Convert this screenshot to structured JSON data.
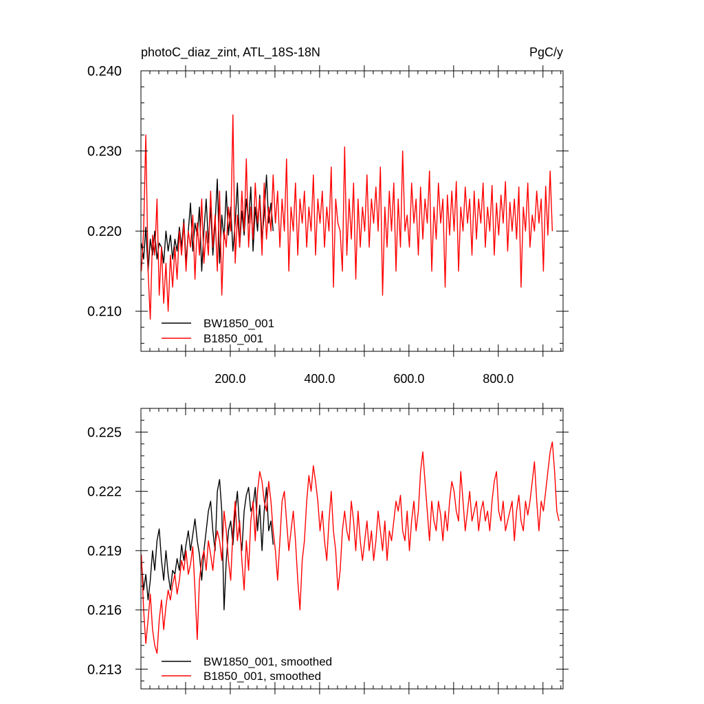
{
  "chart_data": [
    {
      "type": "line",
      "title_left": "photoC_diaz_zint, ATL_18S-18N",
      "title_right": "PgC/y",
      "xlim": [
        0,
        945
      ],
      "ylim": [
        0.205,
        0.24
      ],
      "xticks": [
        200,
        400,
        600,
        800
      ],
      "xtick_labels": [
        "200.0",
        "400.0",
        "600.0",
        "800.0"
      ],
      "yticks": [
        0.21,
        0.22,
        0.23,
        0.24
      ],
      "ytick_labels": [
        "0.210",
        "0.220",
        "0.230",
        "0.240"
      ],
      "legend_position": "bottom-left",
      "series": [
        {
          "name": "BW1850_001",
          "color": "#000000",
          "x_start": 1,
          "x_step": 5,
          "values": [
            0.2185,
            0.2165,
            0.2205,
            0.215,
            0.219,
            0.217,
            0.22,
            0.2165,
            0.2185,
            0.218,
            0.216,
            0.22,
            0.2175,
            0.2195,
            0.2165,
            0.219,
            0.2175,
            0.2205,
            0.218,
            0.2215,
            0.216,
            0.22,
            0.2235,
            0.2175,
            0.221,
            0.2195,
            0.223,
            0.215,
            0.22,
            0.224,
            0.2185,
            0.223,
            0.217,
            0.221,
            0.2265,
            0.216,
            0.222,
            0.219,
            0.225,
            0.2195,
            0.223,
            0.2175,
            0.221,
            0.226,
            0.218,
            0.2225,
            0.2195,
            0.224,
            0.221,
            0.2255,
            0.2175,
            0.223,
            0.22,
            0.2245,
            0.219,
            0.222,
            0.227,
            0.221,
            0.2235,
            0.22
          ]
        },
        {
          "name": "B1850_001",
          "color": "#ff0000",
          "x_start": 1,
          "x_step": 5,
          "values": [
            0.215,
            0.22,
            0.232,
            0.215,
            0.209,
            0.2195,
            0.217,
            0.224,
            0.212,
            0.218,
            0.211,
            0.216,
            0.21,
            0.217,
            0.213,
            0.218,
            0.214,
            0.22,
            0.217,
            0.221,
            0.215,
            0.22,
            0.218,
            0.222,
            0.214,
            0.221,
            0.217,
            0.224,
            0.216,
            0.22,
            0.217,
            0.225,
            0.218,
            0.222,
            0.215,
            0.225,
            0.212,
            0.22,
            0.218,
            0.223,
            0.22,
            0.2345,
            0.216,
            0.222,
            0.218,
            0.225,
            0.22,
            0.229,
            0.218,
            0.223,
            0.219,
            0.226,
            0.221,
            0.224,
            0.217,
            0.226,
            0.219,
            0.223,
            0.22,
            0.227,
            0.221,
            0.225,
            0.218,
            0.224,
            0.22,
            0.229,
            0.215,
            0.223,
            0.22,
            0.226,
            0.217,
            0.224,
            0.221,
            0.225,
            0.218,
            0.223,
            0.22,
            0.227,
            0.217,
            0.224,
            0.221,
            0.225,
            0.218,
            0.223,
            0.22,
            0.228,
            0.213,
            0.224,
            0.221,
            0.22,
            0.215,
            0.2305,
            0.217,
            0.224,
            0.219,
            0.226,
            0.214,
            0.224,
            0.218,
            0.223,
            0.22,
            0.227,
            0.218,
            0.224,
            0.221,
            0.2255,
            0.22,
            0.228,
            0.212,
            0.223,
            0.218,
            0.225,
            0.22,
            0.226,
            0.215,
            0.224,
            0.218,
            0.23,
            0.22,
            0.222,
            0.218,
            0.226,
            0.221,
            0.224,
            0.217,
            0.2255,
            0.219,
            0.224,
            0.221,
            0.2275,
            0.215,
            0.223,
            0.219,
            0.226,
            0.221,
            0.224,
            0.213,
            0.2245,
            0.2195,
            0.225,
            0.22,
            0.2262,
            0.215,
            0.223,
            0.22,
            0.2255,
            0.221,
            0.224,
            0.217,
            0.225,
            0.219,
            0.224,
            0.221,
            0.226,
            0.218,
            0.223,
            0.22,
            0.2257,
            0.217,
            0.2235,
            0.2195,
            0.2245,
            0.221,
            0.2262,
            0.2175,
            0.2236,
            0.22,
            0.224,
            0.219,
            0.2255,
            0.213,
            0.223,
            0.22,
            0.226,
            0.218,
            0.222,
            0.22,
            0.225,
            0.221,
            0.224,
            0.215,
            0.2256,
            0.2195,
            0.2275,
            0.22
          ]
        }
      ]
    },
    {
      "type": "line",
      "xlim": [
        0,
        945
      ],
      "ylim": [
        0.212,
        0.2262
      ],
      "yticks": [
        0.213,
        0.216,
        0.219,
        0.222,
        0.225
      ],
      "ytick_labels": [
        "0.213",
        "0.216",
        "0.219",
        "0.222",
        "0.225"
      ],
      "legend_position": "bottom-left",
      "series": [
        {
          "name": "BW1850_001, smoothed",
          "color": "#000000",
          "x_start": 1,
          "x_step": 5,
          "values": [
            0.2185,
            0.217,
            0.2178,
            0.2165,
            0.2175,
            0.219,
            0.218,
            0.2195,
            0.2201,
            0.2185,
            0.2175,
            0.219,
            0.2178,
            0.217,
            0.218,
            0.2178,
            0.2186,
            0.218,
            0.2193,
            0.2185,
            0.2193,
            0.22,
            0.219,
            0.2198,
            0.2206,
            0.2195,
            0.2188,
            0.2175,
            0.219,
            0.22,
            0.221,
            0.2215,
            0.22,
            0.219,
            0.222,
            0.2226,
            0.221,
            0.216,
            0.2185,
            0.22,
            0.2205,
            0.2193,
            0.221,
            0.222,
            0.22,
            0.219,
            0.221,
            0.2218,
            0.2222,
            0.221,
            0.2213,
            0.2222,
            0.22,
            0.2213,
            0.219,
            0.221,
            0.2222,
            0.22,
            0.2205,
            0.2193
          ]
        },
        {
          "name": "B1850_001, smoothed",
          "color": "#ff0000",
          "x_start": 1,
          "x_step": 5,
          "values": [
            0.2188,
            0.216,
            0.2143,
            0.2155,
            0.2168,
            0.215,
            0.2142,
            0.2138,
            0.2155,
            0.2165,
            0.215,
            0.2162,
            0.217,
            0.2165,
            0.2173,
            0.2178,
            0.2168,
            0.2175,
            0.2185,
            0.218,
            0.219,
            0.2178,
            0.2183,
            0.2192,
            0.217,
            0.2145,
            0.2175,
            0.2185,
            0.219,
            0.218,
            0.2195,
            0.2188,
            0.218,
            0.2193,
            0.22,
            0.2195,
            0.2185,
            0.221,
            0.22,
            0.2185,
            0.2175,
            0.22,
            0.2215,
            0.2195,
            0.2205,
            0.2185,
            0.217,
            0.2195,
            0.218,
            0.2205,
            0.2215,
            0.2195,
            0.222,
            0.223,
            0.2225,
            0.2215,
            0.221,
            0.2225,
            0.2215,
            0.22,
            0.219,
            0.2175,
            0.2195,
            0.2215,
            0.222,
            0.2205,
            0.219,
            0.22,
            0.221,
            0.2195,
            0.2175,
            0.216,
            0.2185,
            0.2195,
            0.2215,
            0.2228,
            0.222,
            0.2233,
            0.2225,
            0.2215,
            0.22,
            0.221,
            0.2195,
            0.2185,
            0.2205,
            0.222,
            0.22,
            0.219,
            0.217,
            0.218,
            0.22,
            0.221,
            0.22,
            0.2195,
            0.2215,
            0.2205,
            0.219,
            0.221,
            0.2195,
            0.2185,
            0.2195,
            0.2205,
            0.219,
            0.22,
            0.2185,
            0.2195,
            0.221,
            0.22,
            0.219,
            0.2205,
            0.2185,
            0.22,
            0.2195,
            0.2205,
            0.2215,
            0.221,
            0.2218,
            0.22,
            0.2195,
            0.221,
            0.219,
            0.2205,
            0.2215,
            0.22,
            0.221,
            0.223,
            0.224,
            0.2225,
            0.221,
            0.2195,
            0.2215,
            0.2205,
            0.22,
            0.2215,
            0.2208,
            0.2195,
            0.221,
            0.22,
            0.2215,
            0.2225,
            0.222,
            0.221,
            0.2205,
            0.223,
            0.2215,
            0.22,
            0.221,
            0.222,
            0.2205,
            0.221,
            0.2215,
            0.22,
            0.221,
            0.2215,
            0.2205,
            0.221,
            0.22,
            0.2215,
            0.2225,
            0.223,
            0.221,
            0.2205,
            0.2215,
            0.22,
            0.2205,
            0.221,
            0.2215,
            0.2195,
            0.221,
            0.2218,
            0.2205,
            0.22,
            0.2215,
            0.2208,
            0.2215,
            0.2225,
            0.2235,
            0.2215,
            0.22,
            0.2215,
            0.221,
            0.222,
            0.223,
            0.224,
            0.2245,
            0.223,
            0.221,
            0.2205
          ]
        }
      ]
    }
  ]
}
